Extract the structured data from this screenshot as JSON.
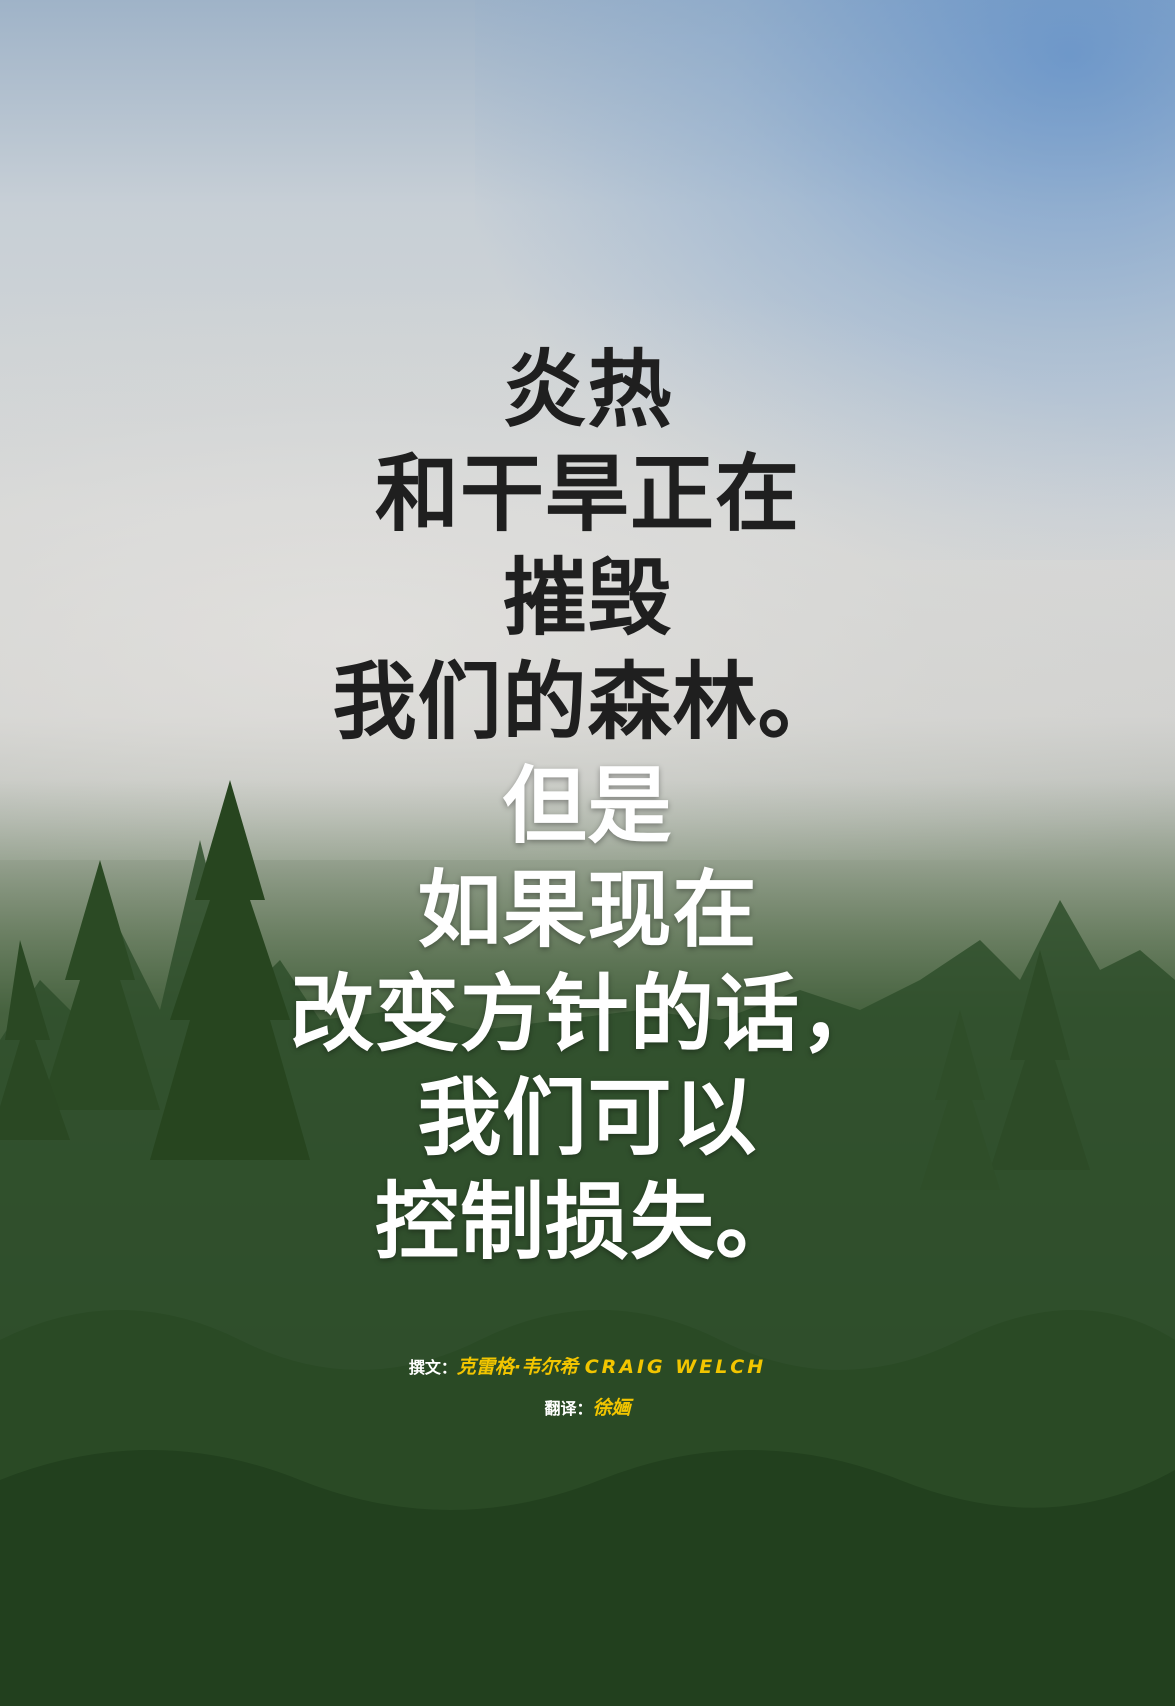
{
  "headline": {
    "dark_lines": [
      "炎热",
      "和干旱正在",
      "摧毁",
      "我们的森林。"
    ],
    "light_lines": [
      "但是",
      "如果现在",
      "改变方针的话，",
      "我们可以",
      "控制损失。"
    ]
  },
  "credits": {
    "author_label": "撰文：",
    "author_name": "克雷格·韦尔希",
    "author_name_en": "CRAIG WELCH",
    "translator_label": "翻译：",
    "translator_name": "徐婳"
  },
  "colors": {
    "headline_dark": "#1f1f1f",
    "headline_light": "#ffffff",
    "credit_accent": "#f2c500"
  }
}
